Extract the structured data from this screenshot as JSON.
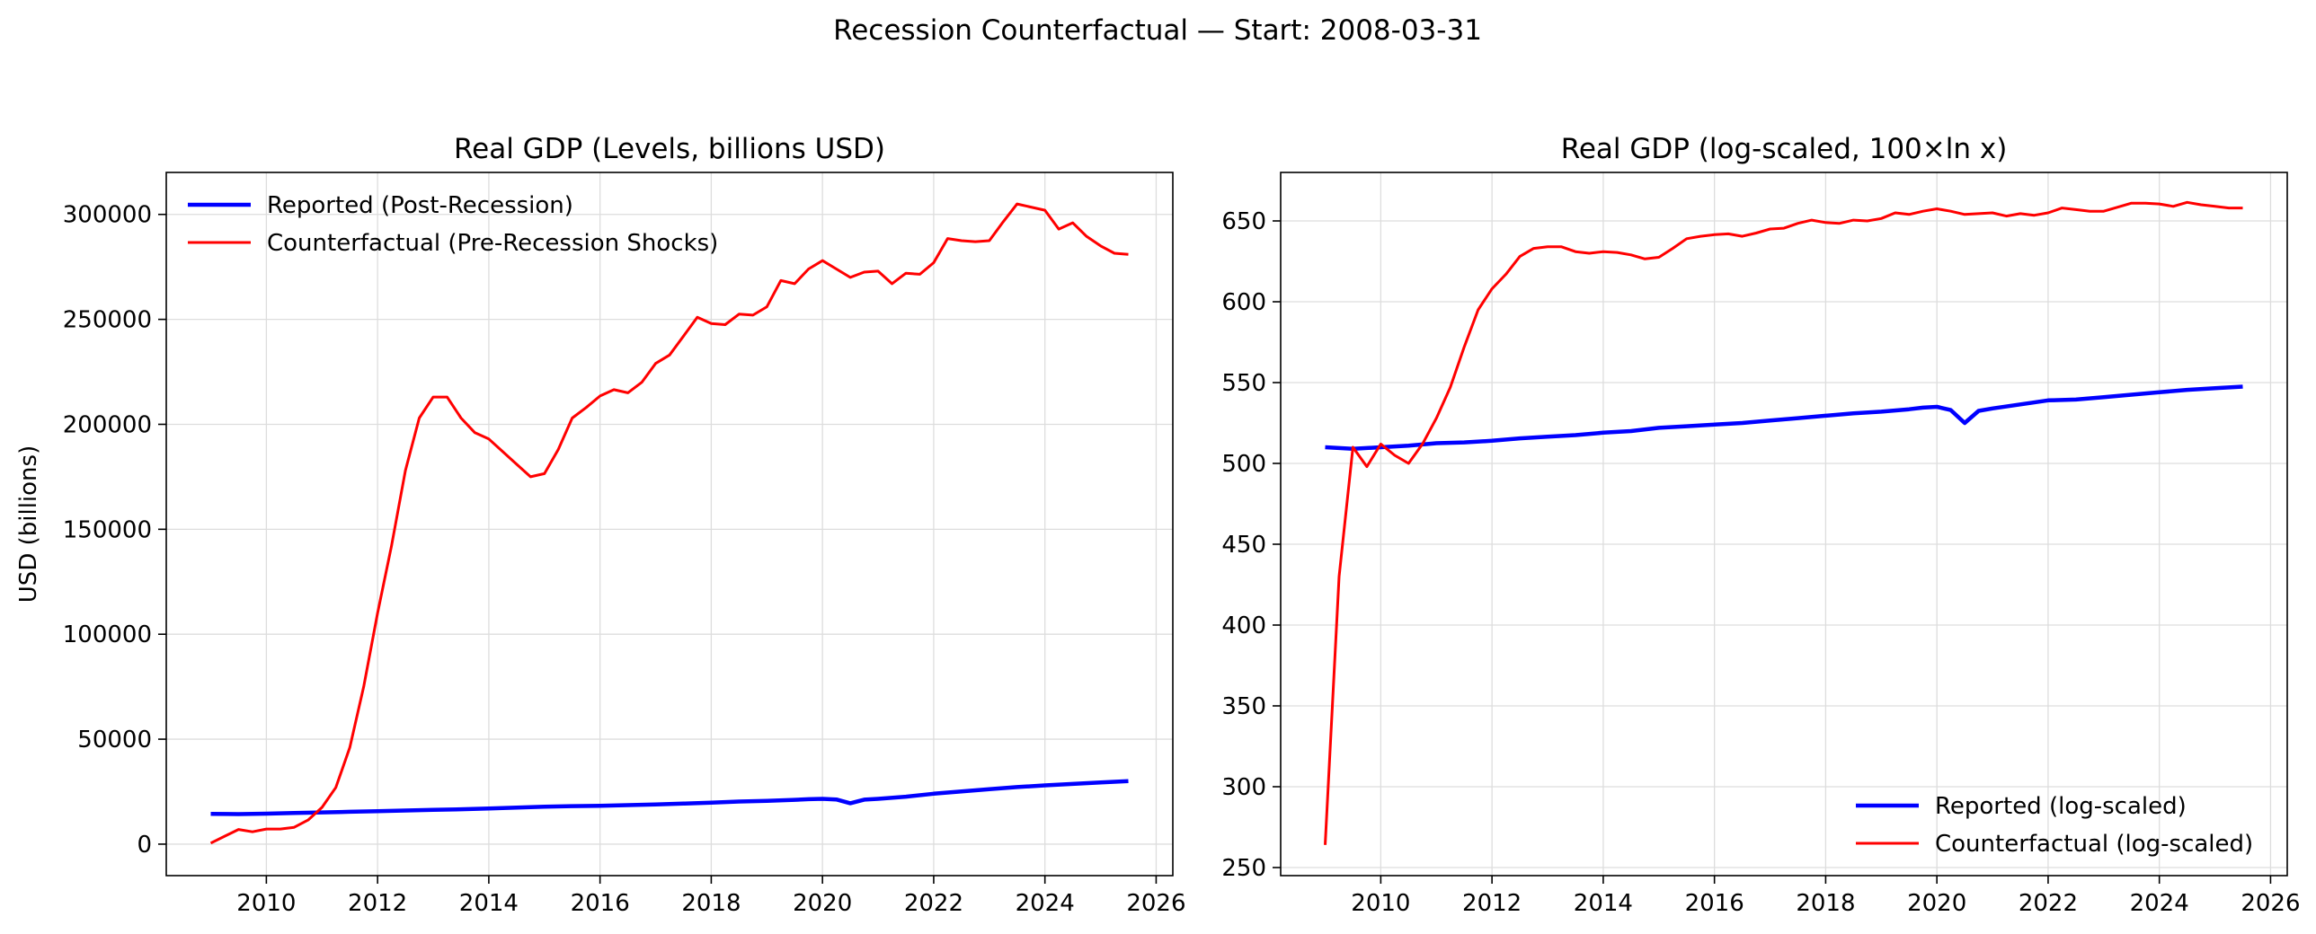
{
  "figure": {
    "suptitle": "Recession Counterfactual — Start: 2008-03-31"
  },
  "colors": {
    "reported": "#0000ff",
    "counterfactual": "#ff0000",
    "grid": "#dddddd",
    "axis": "#000000"
  },
  "chart_data": [
    {
      "type": "line",
      "title": "Real GDP (Levels, billions USD)",
      "xlabel": "",
      "ylabel": "USD (billions)",
      "xlim": [
        2008.2,
        2026.3
      ],
      "ylim": [
        -15000,
        320000
      ],
      "xticks": [
        2010,
        2012,
        2014,
        2016,
        2018,
        2020,
        2022,
        2024,
        2026
      ],
      "yticks": [
        0,
        50000,
        100000,
        150000,
        200000,
        250000,
        300000
      ],
      "grid": true,
      "legend": "top-left",
      "series": [
        {
          "name": "Reported (Post-Recession)",
          "color": "#0000ff",
          "x": [
            2009.0,
            2009.5,
            2010.0,
            2010.5,
            2011.0,
            2011.5,
            2012.0,
            2012.5,
            2013.0,
            2013.5,
            2014.0,
            2014.5,
            2015.0,
            2015.5,
            2016.0,
            2016.5,
            2017.0,
            2017.5,
            2018.0,
            2018.5,
            2019.0,
            2019.5,
            2019.75,
            2020.0,
            2020.25,
            2020.5,
            2020.75,
            2021.0,
            2021.5,
            2022.0,
            2022.5,
            2023.0,
            2023.5,
            2024.0,
            2024.5,
            2025.0,
            2025.5
          ],
          "values": [
            14400,
            14300,
            14500,
            14800,
            15100,
            15400,
            15700,
            16000,
            16300,
            16600,
            17000,
            17400,
            17800,
            18100,
            18300,
            18600,
            18900,
            19300,
            19800,
            20300,
            20600,
            21100,
            21400,
            21600,
            21300,
            19500,
            21200,
            21600,
            22600,
            24000,
            25100,
            26200,
            27200,
            28000,
            28700,
            29400,
            30000
          ]
        },
        {
          "name": "Counterfactual (Pre-Recession Shocks)",
          "color": "#ff0000",
          "x": [
            2009.0,
            2009.25,
            2009.5,
            2009.75,
            2010.0,
            2010.25,
            2010.5,
            2010.75,
            2011.0,
            2011.25,
            2011.5,
            2011.75,
            2012.0,
            2012.25,
            2012.5,
            2012.75,
            2013.0,
            2013.25,
            2013.5,
            2013.75,
            2014.0,
            2014.25,
            2014.5,
            2014.75,
            2015.0,
            2015.25,
            2015.5,
            2015.75,
            2016.0,
            2016.25,
            2016.5,
            2016.75,
            2017.0,
            2017.25,
            2017.5,
            2017.75,
            2018.0,
            2018.25,
            2018.5,
            2018.75,
            2019.0,
            2019.25,
            2019.5,
            2019.75,
            2020.0,
            2020.25,
            2020.5,
            2020.75,
            2021.0,
            2021.25,
            2021.5,
            2021.75,
            2022.0,
            2022.25,
            2022.5,
            2022.75,
            2023.0,
            2023.25,
            2023.5,
            2023.75,
            2024.0,
            2024.25,
            2024.5,
            2024.75,
            2025.0,
            2025.25,
            2025.5
          ],
          "values": [
            500,
            3800,
            7000,
            5900,
            7200,
            7200,
            8000,
            11500,
            17500,
            27000,
            46000,
            75000,
            110000,
            142000,
            178000,
            203000,
            213000,
            213000,
            203000,
            196000,
            193000,
            187000,
            181000,
            175000,
            176500,
            188000,
            203000,
            208000,
            213500,
            216500,
            215000,
            220000,
            229000,
            233000,
            242000,
            251000,
            248000,
            247500,
            252500,
            252000,
            256000,
            268500,
            267000,
            274000,
            278000,
            274000,
            270000,
            272500,
            273000,
            267000,
            272000,
            271500,
            277000,
            288500,
            287500,
            287000,
            287500,
            296500,
            305000,
            303500,
            302000,
            293000,
            296000,
            289500,
            285000,
            281500,
            281000
          ]
        }
      ]
    },
    {
      "type": "line",
      "title": "Real GDP (log-scaled, 100×ln x)",
      "xlabel": "",
      "ylabel": "",
      "xlim": [
        2008.2,
        2026.3
      ],
      "ylim": [
        245,
        680
      ],
      "xticks": [
        2010,
        2012,
        2014,
        2016,
        2018,
        2020,
        2022,
        2024,
        2026
      ],
      "yticks": [
        250,
        300,
        350,
        400,
        450,
        500,
        550,
        600,
        650
      ],
      "grid": true,
      "legend": "bottom-right",
      "series": [
        {
          "name": "Reported (log-scaled)",
          "color": "#0000ff",
          "x": [
            2009.0,
            2009.5,
            2010.0,
            2010.5,
            2011.0,
            2011.5,
            2012.0,
            2012.5,
            2013.0,
            2013.5,
            2014.0,
            2014.5,
            2015.0,
            2015.5,
            2016.0,
            2016.5,
            2017.0,
            2017.5,
            2018.0,
            2018.5,
            2019.0,
            2019.5,
            2019.75,
            2020.0,
            2020.25,
            2020.5,
            2020.75,
            2021.0,
            2021.5,
            2022.0,
            2022.5,
            2023.0,
            2023.5,
            2024.0,
            2024.5,
            2025.0,
            2025.5
          ],
          "values": [
            510,
            509,
            510,
            511,
            512.5,
            513,
            514,
            515.5,
            516.5,
            517.5,
            519,
            520,
            522,
            523,
            524,
            525,
            526.5,
            528,
            529.5,
            531,
            532,
            533.5,
            534.5,
            535,
            533,
            525,
            532.5,
            534,
            536.5,
            539,
            539.5,
            541,
            542.5,
            544,
            545.5,
            546.5,
            547.5
          ]
        },
        {
          "name": "Counterfactual (log-scaled)",
          "color": "#ff0000",
          "x": [
            2009.0,
            2009.25,
            2009.5,
            2009.75,
            2010.0,
            2010.25,
            2010.5,
            2010.75,
            2011.0,
            2011.25,
            2011.5,
            2011.75,
            2012.0,
            2012.25,
            2012.5,
            2012.75,
            2013.0,
            2013.25,
            2013.5,
            2013.75,
            2014.0,
            2014.25,
            2014.5,
            2014.75,
            2015.0,
            2015.25,
            2015.5,
            2015.75,
            2016.0,
            2016.25,
            2016.5,
            2016.75,
            2017.0,
            2017.25,
            2017.5,
            2017.75,
            2018.0,
            2018.25,
            2018.5,
            2018.75,
            2019.0,
            2019.25,
            2019.5,
            2019.75,
            2020.0,
            2020.25,
            2020.5,
            2020.75,
            2021.0,
            2021.25,
            2021.5,
            2021.75,
            2022.0,
            2022.25,
            2022.5,
            2022.75,
            2023.0,
            2023.25,
            2023.5,
            2023.75,
            2024.0,
            2024.25,
            2024.5,
            2024.75,
            2025.0,
            2025.25,
            2025.5
          ],
          "values": [
            264,
            430,
            510,
            498,
            512,
            505,
            500,
            512,
            528,
            547,
            572,
            595,
            608,
            617,
            628,
            633,
            634,
            634,
            631,
            630,
            631,
            630.5,
            629,
            626.5,
            627.5,
            633,
            639,
            640.5,
            641.5,
            642,
            640.5,
            642.5,
            645,
            645.5,
            648.5,
            650.5,
            649,
            648.5,
            650.5,
            650,
            651.5,
            655,
            654,
            656,
            657.5,
            656,
            654,
            654.5,
            655,
            653,
            654.5,
            653.5,
            655,
            658,
            657,
            656,
            656,
            658.5,
            661,
            661,
            660.5,
            659,
            661.5,
            660,
            659,
            658,
            658
          ]
        }
      ]
    }
  ]
}
